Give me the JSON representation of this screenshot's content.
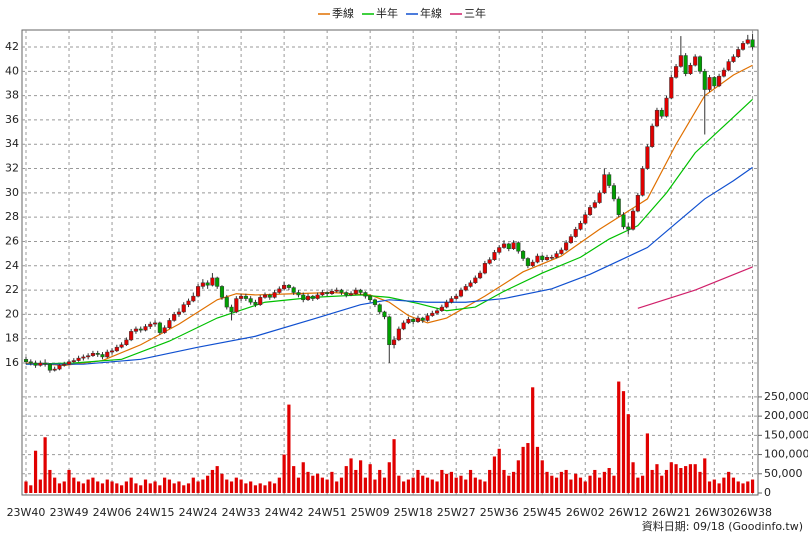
{
  "chart_data": {
    "type": "candlestick",
    "footer": "資料日期: 09/18 (Goodinfo.tw)",
    "categories": [
      "23W40",
      null,
      null,
      null,
      null,
      null,
      null,
      null,
      null,
      "23W49",
      null,
      null,
      null,
      null,
      null,
      null,
      null,
      null,
      "24W06",
      null,
      null,
      null,
      null,
      null,
      null,
      null,
      null,
      "24W15",
      null,
      null,
      null,
      null,
      null,
      null,
      null,
      null,
      "24W24",
      null,
      null,
      null,
      null,
      null,
      null,
      null,
      null,
      "24W33",
      null,
      null,
      null,
      null,
      null,
      null,
      null,
      null,
      "24W42",
      null,
      null,
      null,
      null,
      null,
      null,
      null,
      null,
      "24W51",
      null,
      null,
      null,
      null,
      null,
      null,
      null,
      null,
      "25W09",
      null,
      null,
      null,
      null,
      null,
      null,
      null,
      null,
      "25W18",
      null,
      null,
      null,
      null,
      null,
      null,
      null,
      null,
      "25W27",
      null,
      null,
      null,
      null,
      null,
      null,
      null,
      null,
      "25W36",
      null,
      null,
      null,
      null,
      null,
      null,
      null,
      null,
      "25W45",
      null,
      null,
      null,
      null,
      null,
      null,
      null,
      null,
      "26W02",
      null,
      null,
      null,
      null,
      null,
      null,
      null,
      null,
      "26W12",
      null,
      null,
      null,
      null,
      null,
      null,
      null,
      null,
      "26W21",
      null,
      null,
      null,
      null,
      null,
      null,
      null,
      null,
      "26W30",
      null,
      null,
      null,
      null,
      null,
      null,
      null,
      "26W38"
    ],
    "candles": [
      [
        16.3,
        16.5,
        15.9,
        16.1
      ],
      [
        16.1,
        16.3,
        15.8,
        16.0
      ],
      [
        16.0,
        16.2,
        15.6,
        15.8
      ],
      [
        15.8,
        16.2,
        15.7,
        16.0
      ],
      [
        16.0,
        16.3,
        15.7,
        15.9
      ],
      [
        15.9,
        16.0,
        15.2,
        15.4
      ],
      [
        15.4,
        15.7,
        15.3,
        15.5
      ],
      [
        15.5,
        15.9,
        15.4,
        15.8
      ],
      [
        15.8,
        16.1,
        15.7,
        15.9
      ],
      [
        15.9,
        16.3,
        15.8,
        16.1
      ],
      [
        16.1,
        16.4,
        16.0,
        16.2
      ],
      [
        16.2,
        16.6,
        16.1,
        16.4
      ],
      [
        16.4,
        16.7,
        16.2,
        16.5
      ],
      [
        16.5,
        16.8,
        16.3,
        16.6
      ],
      [
        16.6,
        17.0,
        16.5,
        16.8
      ],
      [
        16.8,
        17.0,
        16.5,
        16.7
      ],
      [
        16.7,
        16.9,
        16.3,
        16.5
      ],
      [
        16.5,
        17.1,
        16.4,
        16.9
      ],
      [
        16.9,
        17.2,
        16.7,
        17.0
      ],
      [
        17.0,
        17.5,
        16.9,
        17.3
      ],
      [
        17.3,
        17.7,
        17.2,
        17.5
      ],
      [
        17.5,
        18.1,
        17.4,
        17.9
      ],
      [
        17.9,
        18.8,
        17.8,
        18.6
      ],
      [
        18.6,
        19.0,
        18.4,
        18.8
      ],
      [
        18.8,
        19.0,
        18.5,
        18.7
      ],
      [
        18.7,
        19.2,
        18.6,
        19.0
      ],
      [
        19.0,
        19.4,
        18.8,
        19.2
      ],
      [
        19.2,
        19.5,
        19.0,
        19.3
      ],
      [
        19.3,
        19.4,
        18.3,
        18.5
      ],
      [
        18.5,
        19.1,
        18.4,
        18.9
      ],
      [
        18.9,
        19.7,
        18.8,
        19.5
      ],
      [
        19.5,
        20.2,
        19.4,
        20.0
      ],
      [
        20.0,
        20.5,
        19.8,
        20.2
      ],
      [
        20.2,
        21.0,
        20.1,
        20.8
      ],
      [
        20.8,
        21.3,
        20.6,
        21.1
      ],
      [
        21.1,
        21.8,
        21.0,
        21.5
      ],
      [
        21.5,
        22.5,
        21.4,
        22.3
      ],
      [
        22.3,
        22.9,
        22.1,
        22.6
      ],
      [
        22.6,
        22.8,
        22.1,
        22.4
      ],
      [
        22.4,
        23.4,
        22.3,
        23.0
      ],
      [
        23.0,
        23.1,
        22.1,
        22.3
      ],
      [
        22.3,
        22.4,
        21.2,
        21.4
      ],
      [
        21.4,
        21.6,
        20.4,
        20.6
      ],
      [
        20.6,
        20.8,
        19.5,
        20.2
      ],
      [
        20.2,
        21.5,
        20.1,
        21.3
      ],
      [
        21.3,
        21.7,
        21.1,
        21.5
      ],
      [
        21.5,
        21.7,
        21.1,
        21.3
      ],
      [
        21.3,
        21.5,
        20.8,
        21.0
      ],
      [
        21.0,
        21.2,
        20.6,
        20.8
      ],
      [
        20.8,
        21.6,
        20.7,
        21.4
      ],
      [
        21.4,
        21.8,
        21.3,
        21.6
      ],
      [
        21.6,
        21.7,
        21.2,
        21.4
      ],
      [
        21.4,
        22.0,
        21.3,
        21.8
      ],
      [
        21.8,
        22.3,
        21.7,
        22.1
      ],
      [
        22.1,
        22.7,
        22.0,
        22.4
      ],
      [
        22.4,
        22.5,
        22.0,
        22.2
      ],
      [
        22.2,
        22.3,
        21.6,
        21.8
      ],
      [
        21.8,
        22.0,
        21.4,
        21.6
      ],
      [
        21.6,
        21.8,
        21.0,
        21.2
      ],
      [
        21.2,
        21.7,
        21.1,
        21.5
      ],
      [
        21.5,
        21.6,
        21.1,
        21.3
      ],
      [
        21.3,
        21.8,
        21.2,
        21.6
      ],
      [
        21.6,
        22.0,
        21.5,
        21.8
      ],
      [
        21.8,
        21.9,
        21.5,
        21.7
      ],
      [
        21.7,
        22.1,
        21.6,
        21.9
      ],
      [
        21.9,
        22.2,
        21.8,
        22.0
      ],
      [
        22.0,
        22.1,
        21.6,
        21.8
      ],
      [
        21.8,
        21.9,
        21.4,
        21.6
      ],
      [
        21.6,
        21.9,
        21.5,
        21.7
      ],
      [
        21.7,
        22.2,
        21.6,
        22.0
      ],
      [
        22.0,
        22.1,
        21.6,
        21.8
      ],
      [
        21.8,
        21.9,
        21.3,
        21.5
      ],
      [
        21.5,
        21.6,
        21.0,
        21.2
      ],
      [
        21.2,
        21.3,
        20.6,
        20.8
      ],
      [
        20.8,
        20.9,
        20.0,
        20.2
      ],
      [
        20.2,
        20.3,
        19.6,
        19.8
      ],
      [
        19.8,
        19.9,
        16.0,
        17.5
      ],
      [
        17.5,
        18.2,
        17.2,
        17.9
      ],
      [
        17.9,
        19.0,
        17.8,
        18.8
      ],
      [
        18.8,
        19.5,
        18.7,
        19.3
      ],
      [
        19.3,
        19.8,
        19.2,
        19.6
      ],
      [
        19.6,
        19.7,
        19.2,
        19.4
      ],
      [
        19.4,
        19.9,
        19.3,
        19.7
      ],
      [
        19.7,
        19.8,
        19.3,
        19.5
      ],
      [
        19.5,
        20.1,
        19.4,
        19.9
      ],
      [
        19.9,
        20.3,
        19.8,
        20.1
      ],
      [
        20.1,
        20.5,
        20.0,
        20.3
      ],
      [
        20.3,
        20.8,
        20.2,
        20.6
      ],
      [
        20.6,
        21.2,
        20.5,
        21.0
      ],
      [
        21.0,
        21.5,
        20.9,
        21.3
      ],
      [
        21.3,
        21.7,
        21.2,
        21.5
      ],
      [
        21.5,
        22.2,
        21.4,
        22.0
      ],
      [
        22.0,
        22.5,
        21.9,
        22.3
      ],
      [
        22.3,
        22.8,
        22.2,
        22.6
      ],
      [
        22.6,
        23.2,
        22.5,
        23.0
      ],
      [
        23.0,
        23.6,
        22.9,
        23.4
      ],
      [
        23.4,
        24.4,
        23.3,
        24.2
      ],
      [
        24.2,
        24.7,
        24.1,
        24.5
      ],
      [
        24.5,
        25.3,
        24.4,
        25.1
      ],
      [
        25.1,
        25.7,
        25.0,
        25.5
      ],
      [
        25.5,
        26.1,
        25.4,
        25.8
      ],
      [
        25.8,
        25.9,
        25.2,
        25.4
      ],
      [
        25.4,
        26.1,
        25.3,
        25.9
      ],
      [
        25.9,
        26.0,
        25.0,
        25.2
      ],
      [
        25.2,
        25.3,
        24.4,
        24.6
      ],
      [
        24.6,
        24.7,
        23.8,
        24.0
      ],
      [
        24.0,
        24.5,
        23.9,
        24.3
      ],
      [
        24.3,
        25.0,
        24.2,
        24.8
      ],
      [
        24.8,
        24.9,
        24.3,
        24.5
      ],
      [
        24.5,
        24.9,
        24.4,
        24.7
      ],
      [
        24.7,
        24.9,
        24.5,
        24.7
      ],
      [
        24.7,
        25.2,
        24.6,
        25.0
      ],
      [
        25.0,
        25.5,
        24.9,
        25.3
      ],
      [
        25.3,
        26.1,
        25.2,
        25.9
      ],
      [
        25.9,
        26.6,
        25.8,
        26.4
      ],
      [
        26.4,
        27.2,
        26.3,
        27.0
      ],
      [
        27.0,
        27.7,
        26.9,
        27.5
      ],
      [
        27.5,
        28.4,
        27.4,
        28.2
      ],
      [
        28.2,
        29.0,
        28.1,
        28.8
      ],
      [
        28.8,
        29.4,
        28.7,
        29.2
      ],
      [
        29.2,
        30.2,
        29.1,
        30.0
      ],
      [
        30.0,
        32.0,
        29.9,
        31.5
      ],
      [
        31.5,
        31.7,
        30.4,
        30.6
      ],
      [
        30.6,
        30.8,
        29.3,
        29.5
      ],
      [
        29.5,
        29.7,
        28.0,
        28.2
      ],
      [
        28.2,
        28.4,
        27.0,
        27.2
      ],
      [
        27.2,
        27.5,
        26.6,
        27.0
      ],
      [
        27.0,
        28.7,
        26.9,
        28.5
      ],
      [
        28.5,
        30.0,
        28.4,
        29.8
      ],
      [
        29.8,
        32.2,
        29.7,
        32.0
      ],
      [
        32.0,
        34.0,
        31.9,
        33.8
      ],
      [
        33.8,
        35.7,
        33.7,
        35.5
      ],
      [
        35.5,
        37.0,
        35.4,
        36.8
      ],
      [
        36.8,
        37.0,
        36.1,
        36.3
      ],
      [
        36.3,
        38.0,
        36.2,
        37.8
      ],
      [
        37.8,
        39.7,
        37.7,
        39.5
      ],
      [
        39.5,
        40.6,
        39.4,
        40.4
      ],
      [
        40.4,
        42.9,
        40.3,
        41.3
      ],
      [
        41.3,
        41.5,
        39.6,
        39.8
      ],
      [
        39.8,
        40.7,
        39.7,
        40.5
      ],
      [
        40.5,
        41.4,
        40.4,
        41.2
      ],
      [
        41.2,
        41.3,
        39.8,
        40.0
      ],
      [
        40.0,
        40.2,
        34.8,
        38.5
      ],
      [
        38.5,
        39.7,
        38.3,
        39.5
      ],
      [
        39.5,
        39.6,
        38.6,
        38.8
      ],
      [
        38.8,
        39.8,
        38.7,
        39.6
      ],
      [
        39.6,
        40.3,
        39.5,
        40.1
      ],
      [
        40.1,
        41.0,
        40.0,
        40.8
      ],
      [
        40.8,
        41.4,
        40.7,
        41.2
      ],
      [
        41.2,
        42.0,
        41.1,
        41.8
      ],
      [
        41.8,
        42.5,
        41.7,
        42.3
      ],
      [
        42.3,
        43.0,
        42.2,
        42.6
      ],
      [
        42.6,
        43.1,
        41.8,
        42.0
      ]
    ],
    "up_color": "#e00000",
    "down_color": "#00a000",
    "volume": {
      "color": "#e00000",
      "values": [
        30000,
        20000,
        110000,
        35000,
        145000,
        60000,
        40000,
        25000,
        30000,
        60000,
        40000,
        30000,
        25000,
        35000,
        40000,
        30000,
        25000,
        35000,
        30000,
        25000,
        20000,
        30000,
        40000,
        25000,
        20000,
        35000,
        25000,
        30000,
        20000,
        40000,
        35000,
        25000,
        30000,
        20000,
        25000,
        40000,
        30000,
        35000,
        45000,
        60000,
        70000,
        50000,
        35000,
        30000,
        40000,
        35000,
        25000,
        30000,
        20000,
        25000,
        20000,
        30000,
        25000,
        40000,
        100000,
        230000,
        70000,
        40000,
        80000,
        55000,
        45000,
        50000,
        40000,
        35000,
        55000,
        30000,
        40000,
        70000,
        90000,
        60000,
        85000,
        40000,
        75000,
        35000,
        60000,
        40000,
        80000,
        140000,
        45000,
        30000,
        35000,
        40000,
        60000,
        45000,
        40000,
        35000,
        30000,
        60000,
        50000,
        55000,
        40000,
        45000,
        35000,
        60000,
        40000,
        35000,
        30000,
        60000,
        95000,
        115000,
        60000,
        45000,
        55000,
        85000,
        120000,
        130000,
        275000,
        120000,
        85000,
        55000,
        45000,
        40000,
        55000,
        60000,
        35000,
        50000,
        40000,
        30000,
        45000,
        60000,
        40000,
        55000,
        65000,
        45000,
        290000,
        265000,
        205000,
        80000,
        40000,
        45000,
        155000,
        60000,
        75000,
        45000,
        60000,
        80000,
        75000,
        65000,
        70000,
        75000,
        75000,
        55000,
        90000,
        30000,
        35000,
        25000,
        40000,
        55000,
        40000,
        30000,
        25000,
        30000,
        35000
      ]
    },
    "moving_averages": [
      {
        "name": "季線",
        "color": "#e07000",
        "x": [
          0,
          8,
          16,
          24,
          32,
          40,
          44,
          48,
          56,
          64,
          72,
          76,
          80,
          84,
          88,
          96,
          104,
          112,
          120,
          126,
          130,
          136,
          142,
          148,
          152
        ],
        "values": [
          16.0,
          15.8,
          16.2,
          17.5,
          19.2,
          21.2,
          21.7,
          21.6,
          21.7,
          21.8,
          21.6,
          21.0,
          19.9,
          19.3,
          19.7,
          21.5,
          23.5,
          24.8,
          27.0,
          28.5,
          29.5,
          34.0,
          38.0,
          39.7,
          40.5
        ]
      },
      {
        "name": "半年",
        "color": "#00c000",
        "x": [
          0,
          10,
          20,
          30,
          40,
          50,
          60,
          70,
          76,
          82,
          88,
          94,
          100,
          108,
          116,
          122,
          128,
          134,
          140,
          146,
          152
        ],
        "values": [
          15.9,
          16.0,
          16.3,
          17.8,
          19.7,
          21.0,
          21.4,
          21.6,
          21.4,
          20.9,
          20.3,
          20.6,
          21.9,
          23.4,
          24.7,
          26.2,
          27.3,
          30.0,
          33.3,
          35.5,
          37.7
        ]
      },
      {
        "name": "年線",
        "color": "#1050d0",
        "x": [
          0,
          12,
          24,
          36,
          48,
          60,
          70,
          76,
          84,
          92,
          100,
          110,
          118,
          124,
          130,
          136,
          142,
          148,
          152
        ],
        "values": [
          15.9,
          15.9,
          16.3,
          17.3,
          18.2,
          19.6,
          20.8,
          21.2,
          21.0,
          21.0,
          21.3,
          22.1,
          23.3,
          24.4,
          25.5,
          27.5,
          29.5,
          31.0,
          32.1
        ]
      },
      {
        "name": "三年",
        "color": "#d0206a",
        "x": [
          128,
          140,
          152
        ],
        "values": [
          20.5,
          22.0,
          23.9
        ]
      }
    ],
    "ylim": [
      14.6,
      43.4
    ],
    "yticks": [
      16,
      18,
      20,
      22,
      24,
      26,
      28,
      30,
      32,
      34,
      36,
      38,
      40,
      42
    ],
    "y2lim": [
      0,
      294000
    ],
    "y2ticks": [
      0,
      {
        "value": 50000,
        "label": "50,000"
      },
      {
        "value": 100000,
        "label": "100,000"
      },
      {
        "value": 150000,
        "label": "150,000"
      },
      {
        "value": 200000,
        "label": "200,000"
      },
      {
        "value": 250000,
        "label": "250,000"
      }
    ],
    "grid": true
  }
}
